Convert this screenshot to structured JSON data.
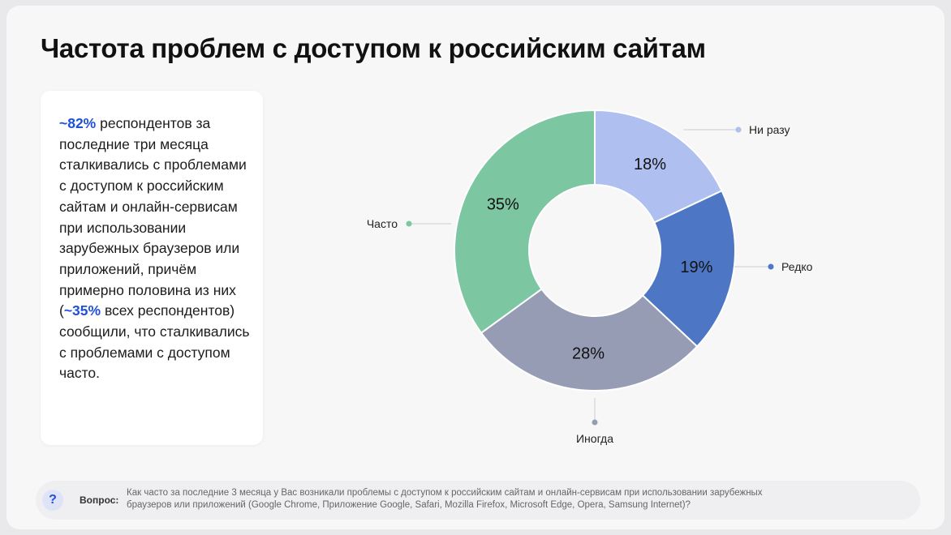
{
  "title": "Частота проблем с доступом к российским сайтам",
  "summary": {
    "pct1": "~82%",
    "text1": " респондентов за последние три месяца сталкивались с проблемами с доступом к российским сайтам и онлайн-сервисам при использовании зарубежных браузеров или приложений, причём примерно половина из них (",
    "pct2": "~35%",
    "text2": " всех респондентов) сообщили, что сталкивались с проблемами с доступом часто."
  },
  "question": {
    "badge": "?",
    "label": "Вопрос:",
    "text": "Как часто за последние 3 месяца у Вас возникали проблемы с доступом к российским сайтам и онлайн-сервисам при использовании зарубежных браузеров или приложений (Google Chrome, Приложение Google, Safari, Mozilla Firefox, Microsoft Edge, Opera, Samsung Internet)?"
  },
  "chart_data": {
    "type": "pie",
    "donut": true,
    "legend": "callout labels",
    "series": [
      {
        "name": "Ни разу",
        "value": 18,
        "label": "18%",
        "color": "#aebff0"
      },
      {
        "name": "Редко",
        "value": 19,
        "label": "19%",
        "color": "#4d77c5"
      },
      {
        "name": "Иногда",
        "value": 28,
        "label": "28%",
        "color": "#969cb3"
      },
      {
        "name": "Часто",
        "value": 35,
        "label": "35%",
        "color": "#7dc6a2"
      }
    ]
  }
}
